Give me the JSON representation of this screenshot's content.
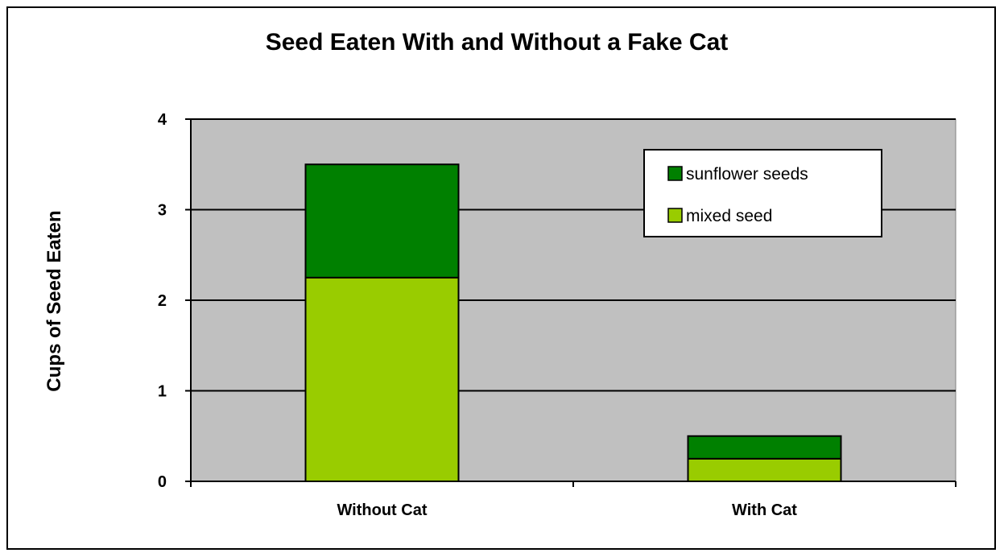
{
  "chart_data": {
    "type": "bar",
    "stacked": true,
    "title": "Seed Eaten With and Without a Fake Cat",
    "xlabel": "",
    "ylabel": "Cups of Seed Eaten",
    "categories": [
      "Without Cat",
      "With Cat"
    ],
    "ylim": [
      0,
      4
    ],
    "yticks": [
      0,
      1,
      2,
      3,
      4
    ],
    "grid": true,
    "legend_placement": "top-right",
    "plot_background": "#c0c0c0",
    "series": [
      {
        "name": "mixed seed",
        "values": [
          2.25,
          0.25
        ],
        "color": "#99cc00"
      },
      {
        "name": "sunflower seeds",
        "values": [
          1.25,
          0.25
        ],
        "color": "#008000"
      }
    ],
    "legend_order": [
      "sunflower seeds",
      "mixed seed"
    ]
  }
}
